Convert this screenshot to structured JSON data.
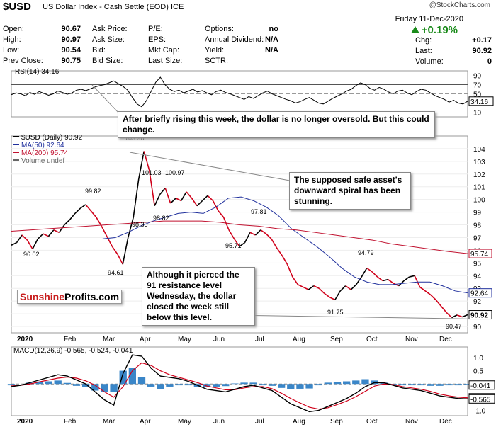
{
  "header": {
    "ticker": "$USD",
    "name": "US Dollar Index - Cash Settle (EOD) ICE",
    "watermark": "@StockCharts.com",
    "date": "Friday  11-Dec-2020",
    "change_pct": "+0.19%",
    "col1": [
      {
        "label": "Open:",
        "value": "90.67"
      },
      {
        "label": "High:",
        "value": "90.97"
      },
      {
        "label": "Low:",
        "value": "90.54"
      },
      {
        "label": "Prev Close:",
        "value": "90.75"
      }
    ],
    "col2": [
      {
        "label": "Ask Price:"
      },
      {
        "label": "Ask Size:"
      },
      {
        "label": "Bid:"
      },
      {
        "label": "Bid Size:"
      }
    ],
    "col3": [
      {
        "label": "P/E:"
      },
      {
        "label": "EPS:"
      },
      {
        "label": "Mkt Cap:"
      },
      {
        "label": "Last Size:"
      }
    ],
    "col4": [
      {
        "label": "Options:",
        "value": "no"
      },
      {
        "label": "Annual Dividend:",
        "value": "N/A"
      },
      {
        "label": "Yield:",
        "value": "N/A"
      },
      {
        "label": "SCTR:",
        "value": ""
      }
    ],
    "col5": [
      {
        "label": "Chg:",
        "value": "+0.17"
      },
      {
        "label": "Last:",
        "value": "90.92"
      },
      {
        "label": "Volume:",
        "value": "0"
      }
    ]
  },
  "annotations": {
    "rsi_note": "After briefly rising this week, the dollar is no longer oversold. But this could change.",
    "spiral_note": "The supposed safe asset's downward spiral has been stunning.",
    "resistance_note": "Although it pierced the 91 resistance level Wednesday, the dollar closed the week still below this level."
  },
  "logo": {
    "part1": "Sunshine",
    "part2": "Profits.com"
  },
  "colors": {
    "price_up": "#000000",
    "price_down": "#d0021b",
    "ma50": "#1f2f9c",
    "ma200": "#c0112f",
    "macd": "#000000",
    "signal": "#d0021b",
    "histogram": "#3a86c8"
  },
  "chart_data": [
    {
      "type": "line",
      "panel": "rsi",
      "title": "RSI(14) 34.16",
      "last_value": "34.16",
      "ylim": [
        0,
        100
      ],
      "y_ticks": [
        10,
        30,
        50,
        70,
        90
      ],
      "reference_lines": [
        30,
        70
      ],
      "y": [
        48,
        52,
        50,
        46,
        53,
        49,
        55,
        51,
        47,
        50,
        56,
        53,
        49,
        52,
        58,
        60,
        57,
        61,
        65,
        68,
        70,
        74,
        78,
        72,
        66,
        58,
        42,
        28,
        22,
        35,
        55,
        75,
        86,
        70,
        60,
        55,
        58,
        52,
        56,
        60,
        54,
        57,
        52,
        48,
        55,
        58,
        53,
        50,
        46,
        42,
        38,
        44,
        40,
        46,
        52,
        56,
        50,
        46,
        42,
        38,
        35,
        30,
        33,
        38,
        42,
        36,
        30,
        28,
        34,
        40,
        45,
        50,
        56,
        60,
        68,
        74,
        70,
        62,
        58,
        64,
        60,
        54,
        50,
        56,
        58,
        52,
        48,
        55,
        60,
        58,
        52,
        46,
        42,
        38,
        32,
        36,
        30,
        28,
        34
      ]
    },
    {
      "type": "line",
      "panel": "price",
      "title": "$USD (Daily) 90.92",
      "x_labels": [
        "2020",
        "Feb",
        "Mar",
        "Apr",
        "May",
        "Jun",
        "Jul",
        "Aug",
        "Sep",
        "Oct",
        "Nov",
        "Dec"
      ],
      "ylim": [
        89.5,
        105
      ],
      "y_ticks": [
        90,
        91,
        92,
        93,
        94,
        95,
        96,
        97,
        98,
        99,
        100,
        101,
        102,
        103,
        104
      ],
      "price_labels": [
        "103.96",
        "101.03",
        "100.97",
        "99.82",
        "98.35",
        "98.82",
        "97.81",
        "96.02",
        "95.71",
        "94.61",
        "94.79",
        "91.75",
        "90.47"
      ],
      "last_price": "90.92",
      "legend": [
        {
          "name": "$USD (Daily) 90.92"
        },
        {
          "name": "MA(50) 92.64",
          "last": "92.64"
        },
        {
          "name": "MA(200) 95.74",
          "last": "95.74"
        },
        {
          "name": "Volume undef"
        }
      ],
      "series": [
        {
          "name": "$USD (Daily)",
          "values": [
            96.4,
            96.6,
            97.2,
            96.8,
            96.1,
            96.9,
            97.3,
            97.1,
            97.6,
            97.4,
            98.0,
            98.4,
            98.9,
            99.3,
            99.6,
            99.1,
            98.6,
            97.9,
            97.1,
            96.3,
            95.7,
            94.9,
            97.0,
            98.6,
            101.6,
            103.8,
            102.3,
            99.5,
            100.4,
            100.9,
            99.7,
            100.1,
            99.9,
            100.6,
            100.1,
            99.5,
            99.9,
            100.3,
            99.9,
            99.1,
            98.6,
            97.6,
            96.9,
            96.3,
            96.6,
            97.4,
            97.2,
            97.6,
            97.3,
            96.9,
            96.2,
            95.6,
            94.9,
            93.9,
            93.3,
            93.1,
            92.9,
            93.2,
            93.0,
            92.6,
            92.3,
            92.1,
            92.8,
            93.2,
            92.9,
            93.3,
            93.9,
            94.6,
            94.3,
            93.9,
            93.6,
            93.7,
            93.4,
            93.2,
            93.6,
            93.9,
            94.0,
            93.1,
            92.8,
            92.5,
            92.1,
            91.6,
            91.1,
            90.7,
            90.9,
            90.75,
            90.92
          ]
        },
        {
          "name": "MA(50)",
          "values": [
            96.9,
            97.0,
            97.4,
            97.9,
            98.3,
            98.6,
            98.9,
            99.0,
            98.9,
            99.4,
            100.1,
            100.2,
            99.9,
            99.4,
            98.7,
            97.7,
            97.0,
            96.3,
            95.5,
            94.6,
            93.9,
            93.5,
            93.3,
            93.3,
            93.4,
            93.5,
            93.5,
            93.2,
            92.8,
            92.64
          ]
        },
        {
          "name": "MA(200)",
          "values": [
            97.5,
            97.6,
            97.7,
            97.8,
            97.9,
            98.0,
            98.1,
            98.2,
            98.3,
            98.3,
            98.3,
            98.2,
            98.0,
            97.9,
            97.7,
            97.6,
            97.4,
            97.2,
            97.0,
            96.8,
            96.5,
            96.3,
            96.1,
            95.9,
            95.74
          ]
        }
      ]
    },
    {
      "type": "line",
      "panel": "macd",
      "title": "MACD(12,26,9) -0.565, -0.524, -0.041",
      "x_labels": [
        "2020",
        "Feb",
        "Mar",
        "Apr",
        "May",
        "Jun",
        "Jul",
        "Aug",
        "Sep",
        "Oct",
        "Nov",
        "Dec"
      ],
      "ylim": [
        -1.2,
        1.4
      ],
      "y_ticks": [
        -1.0,
        -0.5,
        0.0,
        0.5,
        1.0
      ],
      "last_values": [
        "-0.041",
        "-0.524",
        "-0.565"
      ],
      "series": [
        {
          "name": "MACD",
          "values": [
            -0.1,
            -0.05,
            0.05,
            0.15,
            0.25,
            0.35,
            0.3,
            0.15,
            0.0,
            -0.3,
            -0.6,
            -0.8,
            0.4,
            1.1,
            1.05,
            0.6,
            0.3,
            0.25,
            0.2,
            0.1,
            -0.05,
            -0.2,
            -0.25,
            -0.3,
            -0.2,
            -0.1,
            -0.05,
            -0.15,
            -0.25,
            -0.5,
            -0.75,
            -0.9,
            -1.05,
            -1.0,
            -0.85,
            -0.7,
            -0.55,
            -0.35,
            -0.1,
            0.05,
            0.05,
            -0.05,
            -0.15,
            -0.2,
            -0.25,
            -0.35,
            -0.45,
            -0.5,
            -0.55,
            -0.565
          ]
        },
        {
          "name": "Signal",
          "values": [
            -0.05,
            -0.05,
            0.0,
            0.08,
            0.15,
            0.22,
            0.26,
            0.22,
            0.12,
            -0.05,
            -0.3,
            -0.5,
            -0.1,
            0.5,
            0.8,
            0.7,
            0.5,
            0.35,
            0.25,
            0.15,
            0.05,
            -0.08,
            -0.15,
            -0.22,
            -0.22,
            -0.15,
            -0.1,
            -0.1,
            -0.18,
            -0.35,
            -0.55,
            -0.72,
            -0.88,
            -0.95,
            -0.9,
            -0.78,
            -0.65,
            -0.48,
            -0.28,
            -0.08,
            0.0,
            -0.02,
            -0.1,
            -0.15,
            -0.2,
            -0.28,
            -0.38,
            -0.45,
            -0.5,
            -0.524
          ]
        }
      ]
    }
  ]
}
